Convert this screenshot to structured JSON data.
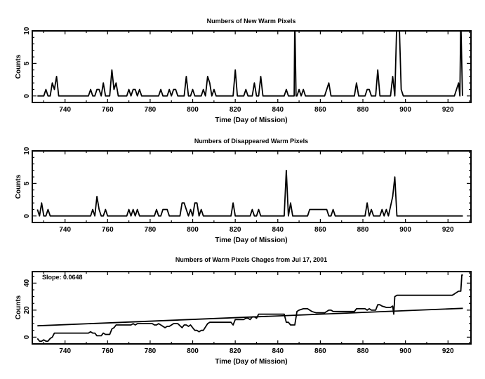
{
  "chart_data": [
    {
      "type": "line",
      "title": "Numbers of New Warm Pixels",
      "xlabel": "Time (Day of Mission)",
      "ylabel": "Counts",
      "xlim": [
        724.6,
        930.8
      ],
      "ylim": [
        -1,
        10
      ],
      "xticks": [
        740,
        760,
        780,
        800,
        820,
        840,
        860,
        880,
        900,
        920
      ],
      "yticks": [
        0,
        5,
        10
      ],
      "series": [
        {
          "name": "new",
          "points": [
            [
              727,
              0
            ],
            [
              730,
              0
            ],
            [
              731,
              1
            ],
            [
              732,
              0
            ],
            [
              733,
              0
            ],
            [
              734,
              2
            ],
            [
              735,
              1
            ],
            [
              736,
              3
            ],
            [
              737,
              0
            ],
            [
              751,
              0
            ],
            [
              752,
              1
            ],
            [
              753,
              0
            ],
            [
              754,
              0
            ],
            [
              755,
              1
            ],
            [
              756,
              1
            ],
            [
              757,
              0
            ],
            [
              758,
              2
            ],
            [
              759,
              0
            ],
            [
              761,
              0
            ],
            [
              762,
              4
            ],
            [
              763,
              1
            ],
            [
              764,
              2
            ],
            [
              765,
              0
            ],
            [
              769,
              0
            ],
            [
              770,
              1
            ],
            [
              771,
              0
            ],
            [
              772,
              1
            ],
            [
              773,
              1
            ],
            [
              774,
              0
            ],
            [
              775,
              1
            ],
            [
              776,
              0
            ],
            [
              784,
              0
            ],
            [
              785,
              1
            ],
            [
              786,
              0
            ],
            [
              788,
              0
            ],
            [
              789,
              1
            ],
            [
              790,
              0
            ],
            [
              791,
              1
            ],
            [
              792,
              1
            ],
            [
              793,
              0
            ],
            [
              796,
              0
            ],
            [
              797,
              3
            ],
            [
              798,
              0
            ],
            [
              799,
              0
            ],
            [
              800,
              1
            ],
            [
              801,
              0
            ],
            [
              804,
              0
            ],
            [
              805,
              1
            ],
            [
              806,
              0
            ],
            [
              807,
              3
            ],
            [
              808,
              2
            ],
            [
              809,
              0
            ],
            [
              810,
              1
            ],
            [
              811,
              0
            ],
            [
              819,
              0
            ],
            [
              820,
              4
            ],
            [
              821,
              0
            ],
            [
              824,
              0
            ],
            [
              825,
              1
            ],
            [
              826,
              0
            ],
            [
              828,
              0
            ],
            [
              829,
              2
            ],
            [
              830,
              0
            ],
            [
              831,
              0
            ],
            [
              832,
              3
            ],
            [
              833,
              0
            ],
            [
              843,
              0
            ],
            [
              844,
              1
            ],
            [
              845,
              0
            ],
            [
              847.7,
              0
            ],
            [
              848,
              12
            ],
            [
              848.6,
              0
            ],
            [
              849,
              0
            ],
            [
              850,
              1
            ],
            [
              851,
              0
            ],
            [
              852,
              1
            ],
            [
              853,
              0
            ],
            [
              862,
              0
            ],
            [
              864,
              2
            ],
            [
              865,
              0
            ],
            [
              876,
              0
            ],
            [
              877,
              2
            ],
            [
              878,
              0
            ],
            [
              881,
              0
            ],
            [
              882,
              1
            ],
            [
              883,
              1
            ],
            [
              884,
              0
            ],
            [
              886,
              0
            ],
            [
              887,
              4
            ],
            [
              888,
              0
            ],
            [
              893,
              0
            ],
            [
              894,
              3
            ],
            [
              895,
              0
            ],
            [
              896,
              12
            ],
            [
              897,
              12
            ],
            [
              898,
              1
            ],
            [
              899,
              0
            ],
            [
              923,
              0
            ],
            [
              925,
              2
            ],
            [
              925.6,
              0
            ],
            [
              926,
              12
            ],
            [
              926.8,
              0
            ]
          ]
        }
      ]
    },
    {
      "type": "line",
      "title": "Numbers of Disappeared Warm Pixels",
      "xlabel": "Time (Day of Mission)",
      "ylabel": "Counts",
      "xlim": [
        724.6,
        930.8
      ],
      "ylim": [
        -1,
        10
      ],
      "xticks": [
        740,
        760,
        780,
        800,
        820,
        840,
        860,
        880,
        900,
        920
      ],
      "yticks": [
        0,
        5,
        10
      ],
      "series": [
        {
          "name": "disappeared",
          "points": [
            [
              727,
              1
            ],
            [
              728,
              0
            ],
            [
              729,
              2
            ],
            [
              730,
              0
            ],
            [
              731,
              0
            ],
            [
              732,
              1
            ],
            [
              733,
              0
            ],
            [
              752,
              0
            ],
            [
              753,
              1
            ],
            [
              754,
              0
            ],
            [
              755,
              3
            ],
            [
              756,
              1
            ],
            [
              757,
              0
            ],
            [
              758,
              0
            ],
            [
              759,
              1
            ],
            [
              760,
              0
            ],
            [
              769,
              0
            ],
            [
              770,
              1
            ],
            [
              771,
              0
            ],
            [
              772,
              1
            ],
            [
              773,
              0
            ],
            [
              774,
              1
            ],
            [
              775,
              0
            ],
            [
              782,
              0
            ],
            [
              783,
              1
            ],
            [
              784,
              0
            ],
            [
              785,
              0
            ],
            [
              786,
              1
            ],
            [
              788,
              1
            ],
            [
              789,
              0
            ],
            [
              794,
              0
            ],
            [
              795,
              2
            ],
            [
              796,
              2
            ],
            [
              797,
              1
            ],
            [
              798,
              0
            ],
            [
              799,
              1
            ],
            [
              800,
              0
            ],
            [
              801,
              2
            ],
            [
              802,
              2
            ],
            [
              803,
              0
            ],
            [
              804,
              1
            ],
            [
              805,
              0
            ],
            [
              818,
              0
            ],
            [
              819,
              2
            ],
            [
              820,
              0
            ],
            [
              827,
              0
            ],
            [
              828,
              1
            ],
            [
              829,
              0
            ],
            [
              830,
              0
            ],
            [
              831,
              1
            ],
            [
              832,
              0
            ],
            [
              843,
              0
            ],
            [
              844,
              7
            ],
            [
              845,
              0
            ],
            [
              846,
              2
            ],
            [
              847,
              0
            ],
            [
              854,
              0
            ],
            [
              855,
              1
            ],
            [
              863,
              1
            ],
            [
              864,
              0
            ],
            [
              865,
              0
            ],
            [
              866,
              1
            ],
            [
              867,
              0
            ],
            [
              881,
              0
            ],
            [
              882,
              2
            ],
            [
              883,
              0
            ],
            [
              884,
              1
            ],
            [
              885,
              0
            ],
            [
              888,
              0
            ],
            [
              889,
              1
            ],
            [
              890,
              0
            ],
            [
              891,
              1
            ],
            [
              892,
              0
            ],
            [
              894,
              3
            ],
            [
              895,
              6
            ],
            [
              896,
              0
            ],
            [
              927,
              0
            ]
          ]
        }
      ]
    },
    {
      "type": "line",
      "title": "Numbers of Warm Pixels Chages from Jul 17, 2001",
      "xlabel": "Time (Day of Mission)",
      "ylabel": "Counts",
      "annotation": "Slope: 0.0648",
      "xlim": [
        724.6,
        930.8
      ],
      "ylim": [
        -5,
        48.5
      ],
      "xticks": [
        740,
        760,
        780,
        800,
        820,
        840,
        860,
        880,
        900,
        920
      ],
      "yticks": [
        0,
        20,
        40
      ],
      "series": [
        {
          "name": "cumulative",
          "points": [
            [
              727,
              -1
            ],
            [
              728,
              -3
            ],
            [
              729,
              -3
            ],
            [
              730,
              -2
            ],
            [
              731,
              -3
            ],
            [
              732,
              -3
            ],
            [
              733,
              -1
            ],
            [
              734,
              0
            ],
            [
              735,
              3
            ],
            [
              751,
              3
            ],
            [
              752,
              4
            ],
            [
              753,
              3
            ],
            [
              754,
              3
            ],
            [
              755,
              1
            ],
            [
              757,
              1
            ],
            [
              758,
              3
            ],
            [
              759,
              2
            ],
            [
              761,
              2
            ],
            [
              762,
              6
            ],
            [
              763,
              7
            ],
            [
              764,
              9
            ],
            [
              771,
              9
            ],
            [
              772,
              10
            ],
            [
              773,
              9
            ],
            [
              774,
              10
            ],
            [
              781,
              10
            ],
            [
              782,
              9
            ],
            [
              783,
              9
            ],
            [
              784,
              10
            ],
            [
              785,
              9
            ],
            [
              787,
              7
            ],
            [
              788,
              8
            ],
            [
              789,
              8
            ],
            [
              791,
              10
            ],
            [
              793,
              10
            ],
            [
              795,
              7
            ],
            [
              796,
              9
            ],
            [
              797,
              9
            ],
            [
              798,
              8
            ],
            [
              799,
              9
            ],
            [
              800,
              7
            ],
            [
              801,
              5
            ],
            [
              802,
              5
            ],
            [
              803,
              4
            ],
            [
              804,
              5
            ],
            [
              805,
              5
            ],
            [
              807,
              10
            ],
            [
              808,
              11
            ],
            [
              818,
              11
            ],
            [
              819,
              9
            ],
            [
              820,
              13
            ],
            [
              824,
              13
            ],
            [
              825,
              14
            ],
            [
              826,
              14
            ],
            [
              827,
              13
            ],
            [
              828,
              15
            ],
            [
              829,
              15
            ],
            [
              830,
              14
            ],
            [
              831,
              17
            ],
            [
              843,
              17
            ],
            [
              844,
              11
            ],
            [
              845,
              11
            ],
            [
              846,
              9
            ],
            [
              848,
              9
            ],
            [
              849,
              19
            ],
            [
              850,
              20
            ],
            [
              852,
              21
            ],
            [
              854,
              21
            ],
            [
              856,
              19
            ],
            [
              858,
              18
            ],
            [
              862,
              18
            ],
            [
              864,
              20
            ],
            [
              865,
              20
            ],
            [
              866,
              19
            ],
            [
              876,
              19
            ],
            [
              877,
              21
            ],
            [
              881,
              21
            ],
            [
              882,
              20
            ],
            [
              883,
              21
            ],
            [
              884,
              20
            ],
            [
              886,
              20
            ],
            [
              887,
              24
            ],
            [
              888,
              24
            ],
            [
              889,
              23
            ],
            [
              891,
              22
            ],
            [
              893,
              22
            ],
            [
              894,
              23
            ],
            [
              894.5,
              17
            ],
            [
              895,
              30
            ],
            [
              896,
              31
            ],
            [
              922,
              31
            ],
            [
              923,
              32
            ],
            [
              925,
              34
            ],
            [
              926,
              34
            ],
            [
              926.5,
              46
            ],
            [
              927,
              46
            ]
          ]
        },
        {
          "name": "linear-fit",
          "slope": 0.0648,
          "points": [
            [
              727,
              8.4
            ],
            [
              927,
              21.36
            ]
          ]
        }
      ]
    }
  ]
}
